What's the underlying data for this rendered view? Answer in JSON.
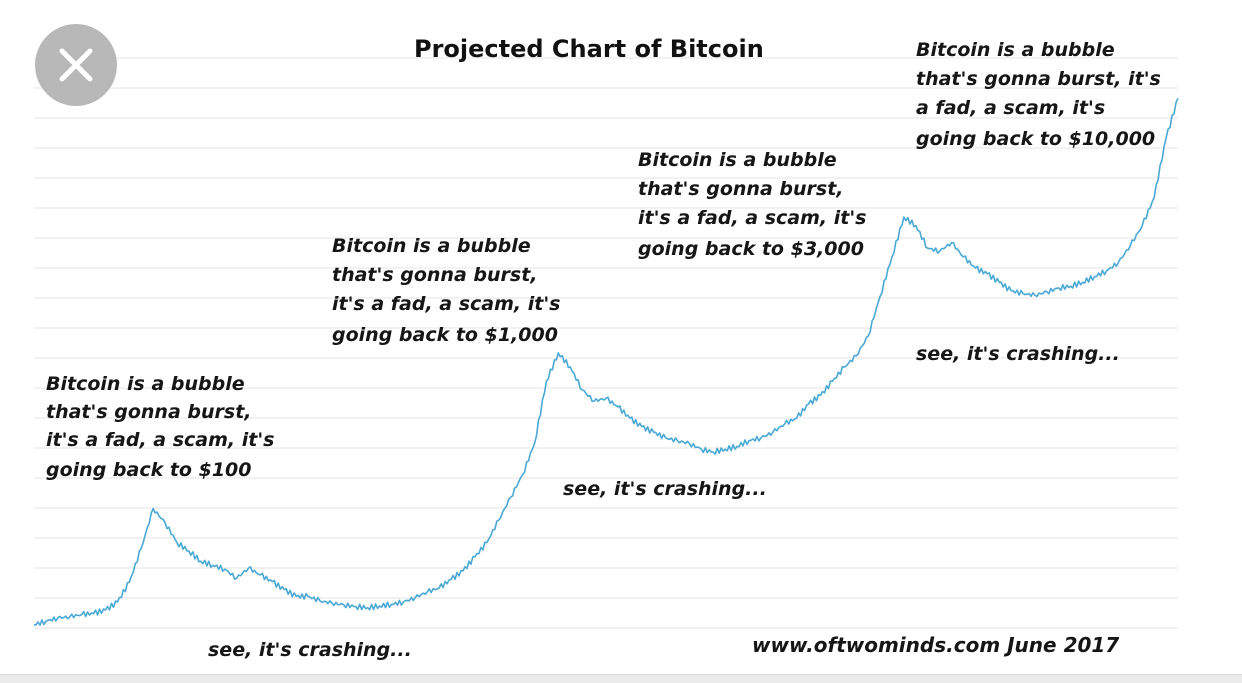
{
  "colors": {
    "line": "#4aa8d4",
    "grid": "#e6e6e6",
    "close_button": "#b8b8b8",
    "close_icon": "#ffffff"
  },
  "close_button": {
    "icon": "close-icon"
  },
  "chart_data": {
    "type": "line",
    "title": "Projected Chart of Bitcoin",
    "source": "www.oftwominds.com  June 2017",
    "grid": true,
    "axes_visible": false,
    "series": [
      {
        "values": [
          2.0,
          2.6,
          3.2,
          3.4,
          3.8,
          4.0,
          4.6,
          6.0,
          9.5,
          15.5,
          22.5,
          20.0,
          16.5,
          15.0,
          13.2,
          12.5,
          11.8,
          10.2,
          12.0,
          10.8,
          9.6,
          8.2,
          7.0,
          7.0,
          6.2,
          5.8,
          5.5,
          5.2,
          5.0,
          5.3,
          5.6,
          6.0,
          6.8,
          7.8,
          8.5,
          10.0,
          11.5,
          14.0,
          16.5,
          20.5,
          24.5,
          28.5,
          34.0,
          45.0,
          50.0,
          47.5,
          43.5,
          41.5,
          42.0,
          40.5,
          38.5,
          37.0,
          36.0,
          35.0,
          34.5,
          34.0,
          33.0,
          32.5,
          33.0,
          33.5,
          34.5,
          35.0,
          36.0,
          37.5,
          38.5,
          41.0,
          42.5,
          45.0,
          47.5,
          49.5,
          53.0,
          60.0,
          67.0,
          74.0,
          72.5,
          68.5,
          68.0,
          69.5,
          67.0,
          65.0,
          64.0,
          62.5,
          61.0,
          60.5,
          60.2,
          60.8,
          61.5,
          61.8,
          62.5,
          63.5,
          64.5,
          66.0,
          69.0,
          72.5,
          77.5,
          88.0,
          95.0
        ]
      }
    ],
    "annotations": [
      {
        "lines": [
          "Bitcoin is a bubble",
          "that's gonna burst,",
          "it's a fad, a scam, it's",
          "going back to $100"
        ]
      },
      {
        "lines": [
          "Bitcoin is a bubble",
          "that's gonna burst,",
          "it's a fad, a scam, it's",
          "going back to $1,000"
        ]
      },
      {
        "lines": [
          "Bitcoin is a bubble",
          "that's gonna burst,",
          "it's a fad, a scam, it's",
          "going back to $3,000"
        ]
      },
      {
        "lines": [
          "Bitcoin is a bubble",
          "that's gonna burst, it's",
          "a fad, a scam, it's",
          "going back to $10,000"
        ]
      }
    ],
    "captions": [
      "see, it's crashing...",
      "see, it's crashing...",
      "see, it's crashing..."
    ]
  }
}
